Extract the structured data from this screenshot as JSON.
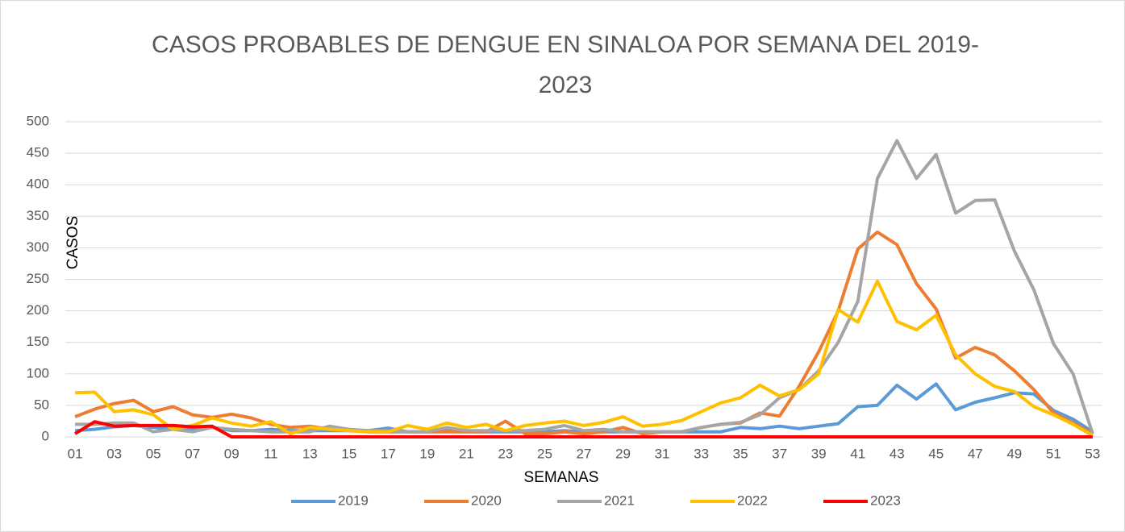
{
  "chart_data": {
    "type": "line",
    "title": "CASOS PROBABLES DE DENGUE EN SINALOA POR SEMANA DEL 2019-2023",
    "x_label": "SEMANAS",
    "y_label": "CASOS",
    "categories": [
      "01",
      null,
      "03",
      null,
      "05",
      null,
      "07",
      null,
      "09",
      null,
      "11",
      null,
      "13",
      null,
      "15",
      null,
      "17",
      null,
      "19",
      null,
      "21",
      null,
      "23",
      null,
      "25",
      null,
      "27",
      null,
      "29",
      null,
      "31",
      null,
      "33",
      null,
      "35",
      null,
      "37",
      null,
      "39",
      null,
      "41",
      null,
      "43",
      null,
      "45",
      null,
      "47",
      null,
      "49",
      null,
      "51",
      null,
      "53"
    ],
    "ylim": [
      0,
      500
    ],
    "yticks": [
      0,
      50,
      100,
      150,
      200,
      250,
      300,
      350,
      400,
      450,
      500
    ],
    "grid": true,
    "legend": "bottom",
    "series": [
      {
        "name": "2019",
        "color": "#5b9bd5",
        "values": [
          10,
          12,
          16,
          18,
          15,
          12,
          12,
          15,
          10,
          10,
          12,
          10,
          10,
          10,
          10,
          10,
          14,
          8,
          8,
          10,
          8,
          8,
          8,
          8,
          8,
          10,
          8,
          8,
          8,
          8,
          8,
          8,
          8,
          8,
          15,
          13,
          17,
          13,
          17,
          21,
          48,
          50,
          82,
          60,
          84,
          43,
          55,
          62,
          70,
          68,
          42,
          28,
          8
        ]
      },
      {
        "name": "2020",
        "color": "#ed7d31",
        "values": [
          32,
          44,
          53,
          58,
          40,
          48,
          35,
          31,
          36,
          30,
          20,
          15,
          17,
          12,
          10,
          8,
          8,
          8,
          8,
          8,
          8,
          8,
          25,
          5,
          5,
          8,
          5,
          8,
          15,
          5,
          8,
          8,
          15,
          20,
          22,
          38,
          33,
          80,
          135,
          200,
          298,
          325,
          305,
          243,
          203,
          125,
          142,
          130,
          105,
          75,
          38,
          22,
          5
        ]
      },
      {
        "name": "2021",
        "color": "#a5a5a5",
        "values": [
          20,
          20,
          22,
          22,
          8,
          12,
          8,
          15,
          12,
          10,
          8,
          8,
          8,
          17,
          12,
          10,
          10,
          8,
          8,
          15,
          10,
          10,
          10,
          10,
          12,
          18,
          10,
          12,
          8,
          8,
          8,
          8,
          15,
          20,
          23,
          35,
          62,
          75,
          105,
          150,
          215,
          410,
          470,
          410,
          448,
          355,
          375,
          376,
          295,
          233,
          148,
          100,
          5
        ]
      },
      {
        "name": "2022",
        "color": "#ffc000",
        "values": [
          70,
          71,
          40,
          43,
          35,
          12,
          18,
          30,
          22,
          17,
          24,
          5,
          15,
          12,
          10,
          8,
          8,
          18,
          12,
          22,
          15,
          20,
          10,
          18,
          22,
          25,
          18,
          23,
          32,
          17,
          20,
          26,
          40,
          54,
          62,
          82,
          65,
          75,
          100,
          202,
          182,
          247,
          183,
          170,
          193,
          130,
          100,
          80,
          72,
          48,
          35,
          20,
          2
        ]
      },
      {
        "name": "2023",
        "color": "#ff0000",
        "values": [
          5,
          24,
          17,
          18,
          18,
          18,
          16,
          17,
          0,
          0,
          0,
          0,
          0,
          0,
          0,
          0,
          0,
          0,
          0,
          0,
          0,
          0,
          0,
          0,
          0,
          0,
          0,
          0,
          0,
          0,
          0,
          0,
          0,
          0,
          0,
          0,
          0,
          0,
          0,
          0,
          0,
          0,
          0,
          0,
          0,
          0,
          0,
          0,
          0,
          0,
          0,
          0,
          0
        ]
      }
    ]
  }
}
